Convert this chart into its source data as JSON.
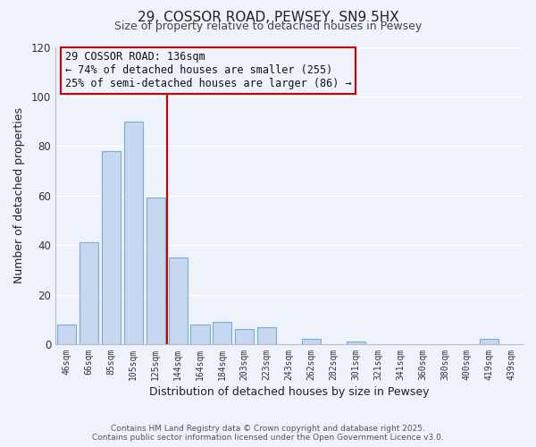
{
  "title": "29, COSSOR ROAD, PEWSEY, SN9 5HX",
  "subtitle": "Size of property relative to detached houses in Pewsey",
  "xlabel": "Distribution of detached houses by size in Pewsey",
  "ylabel": "Number of detached properties",
  "bar_color": "#c5d8ef",
  "bar_edge_color": "#7aadd4",
  "background_color": "#eef2fa",
  "grid_color": "#ffffff",
  "categories": [
    "46sqm",
    "66sqm",
    "85sqm",
    "105sqm",
    "125sqm",
    "144sqm",
    "164sqm",
    "184sqm",
    "203sqm",
    "223sqm",
    "243sqm",
    "262sqm",
    "282sqm",
    "301sqm",
    "321sqm",
    "341sqm",
    "360sqm",
    "380sqm",
    "400sqm",
    "419sqm",
    "439sqm"
  ],
  "values": [
    8,
    41,
    78,
    90,
    59,
    35,
    8,
    9,
    6,
    7,
    0,
    2,
    0,
    1,
    0,
    0,
    0,
    0,
    0,
    2,
    0
  ],
  "vline_idx": 5,
  "vline_color": "#cc0000",
  "annotation_title": "29 COSSOR ROAD: 136sqm",
  "annotation_line1": "← 74% of detached houses are smaller (255)",
  "annotation_line2": "25% of semi-detached houses are larger (86) →",
  "footer1": "Contains HM Land Registry data © Crown copyright and database right 2025.",
  "footer2": "Contains public sector information licensed under the Open Government Licence v3.0.",
  "ylim": [
    0,
    120
  ],
  "yticks": [
    0,
    20,
    40,
    60,
    80,
    100,
    120
  ]
}
